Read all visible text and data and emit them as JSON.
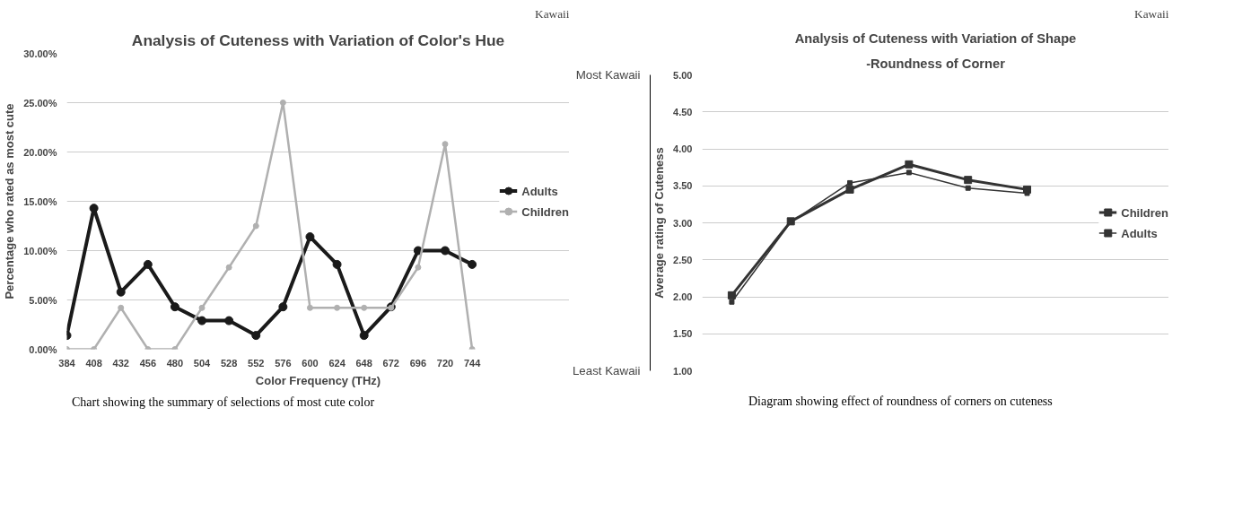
{
  "chart_data": [
    {
      "type": "line",
      "title": "Analysis of Cuteness with Variation of Color's Hue",
      "xlabel": "Color Frequency (THz)",
      "ylabel": "Percentage who rated as most cute",
      "categories": [
        "384",
        "408",
        "432",
        "456",
        "480",
        "504",
        "528",
        "552",
        "576",
        "600",
        "624",
        "648",
        "672",
        "696",
        "720",
        "744"
      ],
      "series": [
        {
          "name": "Adults",
          "color": "#1a1a1a",
          "values": [
            1.4,
            14.3,
            5.8,
            8.6,
            4.3,
            2.9,
            2.9,
            1.4,
            4.3,
            11.4,
            8.6,
            1.4,
            4.3,
            10.0,
            10.0,
            8.6
          ]
        },
        {
          "name": "Children",
          "color": "#b0b0b0",
          "values": [
            0,
            0,
            4.2,
            0,
            0,
            4.2,
            8.3,
            12.5,
            25.0,
            4.2,
            4.2,
            4.2,
            4.2,
            8.3,
            20.8,
            0
          ]
        }
      ],
      "ylim": [
        0,
        30
      ],
      "yticks": [
        {
          "value": 0,
          "label": "0.00%"
        },
        {
          "value": 5,
          "label": "5.00%"
        },
        {
          "value": 10,
          "label": "10.00%"
        },
        {
          "value": 15,
          "label": "15.00%"
        },
        {
          "value": 20,
          "label": "20.00%"
        },
        {
          "value": 25,
          "label": "25.00%"
        },
        {
          "value": 30,
          "label": "30.00%"
        }
      ],
      "grid": "y",
      "legend": "right",
      "marker": "circle",
      "annotations": [
        "Kawaii",
        "Chart showing the summary of selections of most cute color"
      ]
    },
    {
      "type": "line",
      "title": "Analysis of Cuteness with Variation of Shape",
      "subtitle": "-Roundness of Corner",
      "ylabel": "Average rating of Cuteness",
      "categories": [
        null,
        null,
        null,
        null,
        null,
        null
      ],
      "series": [
        {
          "name": "Children",
          "color": "#333333",
          "values": [
            2.02,
            3.02,
            3.45,
            3.79,
            3.58,
            3.45
          ]
        },
        {
          "name": "Adults",
          "color": "#333333",
          "values": [
            1.93,
            3.01,
            3.54,
            3.68,
            3.47,
            3.4
          ]
        }
      ],
      "ylim": [
        1,
        5
      ],
      "yticks": [
        {
          "value": 1,
          "label": "1.00"
        },
        {
          "value": 1.5,
          "label": "1.50"
        },
        {
          "value": 2,
          "label": "2.00"
        },
        {
          "value": 2.5,
          "label": "2.50"
        },
        {
          "value": 3,
          "label": "3.00"
        },
        {
          "value": 3.5,
          "label": "3.50"
        },
        {
          "value": 4,
          "label": "4.00"
        },
        {
          "value": 4.5,
          "label": "4.50"
        },
        {
          "value": 5,
          "label": "5.00"
        }
      ],
      "grid": "y",
      "legend": "right",
      "marker": "square",
      "annotations": [
        "Kawaii",
        "Most Kawaii",
        "Least Kawaii",
        "Diagram showing effect of roundness of corners on cuteness"
      ]
    }
  ]
}
